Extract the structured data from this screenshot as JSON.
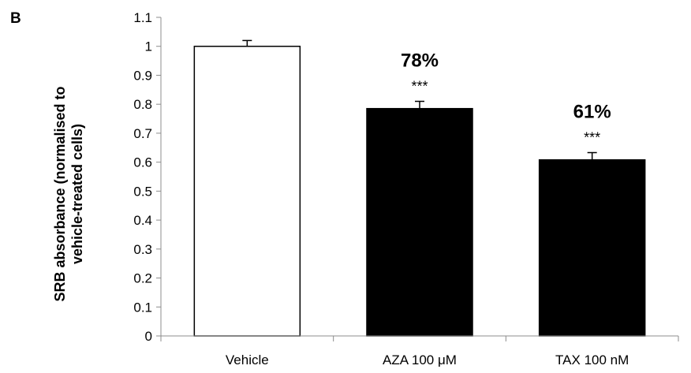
{
  "panel_label": "B",
  "chart_data": {
    "type": "bar",
    "categories": [
      "Vehicle",
      "AZA 100 μM",
      "TAX 100 nM"
    ],
    "values": [
      1.0,
      0.785,
      0.608
    ],
    "errors": [
      0.02,
      0.025,
      0.025
    ],
    "bar_colors": [
      "#ffffff",
      "#000000",
      "#000000"
    ],
    "percent_labels": [
      "",
      "78%",
      "61%"
    ],
    "significance": [
      "",
      "***",
      "***"
    ],
    "ylabel_lines": [
      "SRB absorbance (normalised to",
      "vehicle-treated cells)"
    ],
    "xlabel": "",
    "title": "",
    "ylim": [
      0,
      1.1
    ],
    "yticks": [
      0,
      0.1,
      0.2,
      0.3,
      0.4,
      0.5,
      0.6,
      0.7,
      0.8,
      0.9,
      1,
      1.1
    ],
    "ytick_labels": [
      "0",
      "0.1",
      "0.2",
      "0.3",
      "0.4",
      "0.5",
      "0.6",
      "0.7",
      "0.8",
      "0.9",
      "1",
      "1.1"
    ],
    "grid": false,
    "legend": "none"
  }
}
